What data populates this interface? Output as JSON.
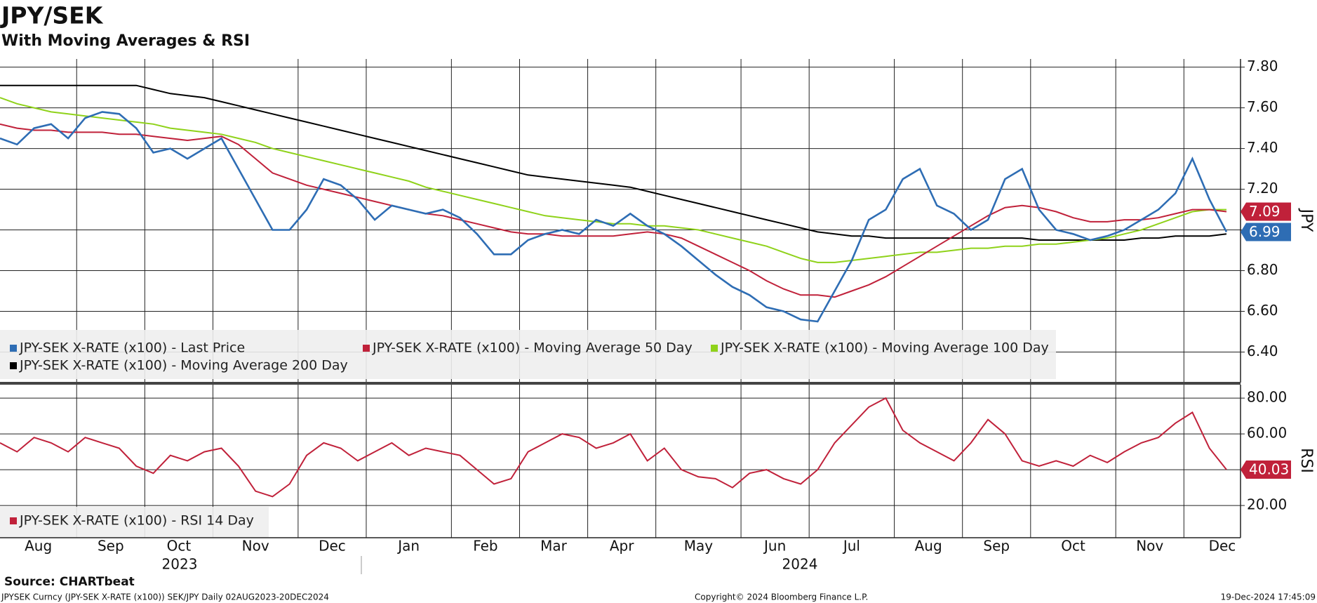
{
  "chart_data": [
    {
      "type": "line",
      "title": "JPY/SEK",
      "subtitle": "With Moving Averages & RSI",
      "axis_label": "JPY",
      "categories": [
        "Aug",
        null,
        null,
        null,
        null,
        "Sep",
        null,
        null,
        null,
        "Oct",
        null,
        null,
        null,
        "Nov",
        null,
        null,
        null,
        null,
        "Dec",
        null,
        null,
        null,
        "Jan",
        null,
        null,
        null,
        null,
        "Feb",
        null,
        null,
        null,
        "Mar",
        null,
        null,
        null,
        "Apr",
        null,
        null,
        null,
        "May",
        null,
        null,
        null,
        null,
        "Jun",
        null,
        null,
        null,
        "Jul",
        null,
        null,
        null,
        null,
        "Aug",
        null,
        null,
        null,
        "Sep",
        null,
        null,
        null,
        "Oct",
        null,
        null,
        null,
        null,
        "Nov",
        null,
        null,
        null,
        "Dec",
        null,
        null
      ],
      "years": [
        "2023",
        "2024"
      ],
      "ylim": [
        6.25,
        7.84
      ],
      "yticks": [
        {
          "value": 6.4,
          "label": "6.40"
        },
        {
          "value": 6.6,
          "label": "6.60"
        },
        {
          "value": 6.8,
          "label": "6.80"
        },
        {
          "value": 7.0,
          "label": "7.00"
        },
        {
          "value": 7.2,
          "label": "7.20"
        },
        {
          "value": 7.4,
          "label": "7.40"
        },
        {
          "value": 7.6,
          "label": "7.60"
        },
        {
          "value": 7.8,
          "label": "7.80"
        }
      ],
      "grid": true,
      "legend": "bottom-left",
      "series": [
        {
          "name": "JPY-SEK X-RATE (x100) - Last Price",
          "color": "#2e6db4",
          "end_label": true,
          "values": [
            7.45,
            7.42,
            7.5,
            7.52,
            7.45,
            7.55,
            7.58,
            7.57,
            7.5,
            7.38,
            7.4,
            7.35,
            7.4,
            7.45,
            7.3,
            7.15,
            7.0,
            7.0,
            7.1,
            7.25,
            7.22,
            7.15,
            7.05,
            7.12,
            7.1,
            7.08,
            7.1,
            7.06,
            6.98,
            6.88,
            6.88,
            6.95,
            6.98,
            7.0,
            6.98,
            7.05,
            7.02,
            7.08,
            7.02,
            6.98,
            6.92,
            6.85,
            6.78,
            6.72,
            6.68,
            6.62,
            6.6,
            6.56,
            6.55,
            6.7,
            6.85,
            7.05,
            7.1,
            7.25,
            7.3,
            7.12,
            7.08,
            7.0,
            7.05,
            7.25,
            7.3,
            7.1,
            7.0,
            6.98,
            6.95,
            6.97,
            7.0,
            7.05,
            7.1,
            7.18,
            7.35,
            7.15,
            6.99
          ]
        },
        {
          "name": "JPY-SEK X-RATE (x100) - Moving Average 50 Day",
          "color": "#c0213a",
          "end_label": true,
          "values": [
            7.52,
            7.5,
            7.49,
            7.49,
            7.48,
            7.48,
            7.48,
            7.47,
            7.47,
            7.46,
            7.45,
            7.44,
            7.45,
            7.46,
            7.42,
            7.35,
            7.28,
            7.25,
            7.22,
            7.2,
            7.18,
            7.16,
            7.14,
            7.12,
            7.1,
            7.08,
            7.07,
            7.05,
            7.03,
            7.01,
            6.99,
            6.98,
            6.98,
            6.97,
            6.97,
            6.97,
            6.97,
            6.98,
            6.99,
            6.98,
            6.96,
            6.92,
            6.88,
            6.84,
            6.8,
            6.75,
            6.71,
            6.68,
            6.68,
            6.67,
            6.7,
            6.73,
            6.77,
            6.82,
            6.87,
            6.92,
            6.97,
            7.02,
            7.07,
            7.11,
            7.12,
            7.11,
            7.09,
            7.06,
            7.04,
            7.04,
            7.05,
            7.05,
            7.06,
            7.08,
            7.1,
            7.1,
            7.09
          ]
        },
        {
          "name": "JPY-SEK X-RATE (x100) - Moving Average 100 Day",
          "color": "#8fd21a",
          "values": [
            7.65,
            7.62,
            7.6,
            7.58,
            7.57,
            7.56,
            7.55,
            7.54,
            7.53,
            7.52,
            7.5,
            7.49,
            7.48,
            7.47,
            7.45,
            7.43,
            7.4,
            7.38,
            7.36,
            7.34,
            7.32,
            7.3,
            7.28,
            7.26,
            7.24,
            7.21,
            7.19,
            7.17,
            7.15,
            7.13,
            7.11,
            7.09,
            7.07,
            7.06,
            7.05,
            7.04,
            7.03,
            7.03,
            7.02,
            7.02,
            7.01,
            7.0,
            6.98,
            6.96,
            6.94,
            6.92,
            6.89,
            6.86,
            6.84,
            6.84,
            6.85,
            6.86,
            6.87,
            6.88,
            6.89,
            6.89,
            6.9,
            6.91,
            6.91,
            6.92,
            6.92,
            6.93,
            6.93,
            6.94,
            6.95,
            6.96,
            6.98,
            7.0,
            7.03,
            7.06,
            7.09,
            7.1,
            7.1
          ]
        },
        {
          "name": "JPY-SEK X-RATE (x100) - Moving Average 200 Day",
          "color": "#000000",
          "values": [
            7.71,
            7.71,
            7.71,
            7.71,
            7.71,
            7.71,
            7.71,
            7.71,
            7.71,
            7.69,
            7.67,
            7.66,
            7.65,
            7.63,
            7.61,
            7.59,
            7.57,
            7.55,
            7.53,
            7.51,
            7.49,
            7.47,
            7.45,
            7.43,
            7.41,
            7.39,
            7.37,
            7.35,
            7.33,
            7.31,
            7.29,
            7.27,
            7.26,
            7.25,
            7.24,
            7.23,
            7.22,
            7.21,
            7.19,
            7.17,
            7.15,
            7.13,
            7.11,
            7.09,
            7.07,
            7.05,
            7.03,
            7.01,
            6.99,
            6.98,
            6.97,
            6.97,
            6.96,
            6.96,
            6.96,
            6.96,
            6.96,
            6.96,
            6.96,
            6.96,
            6.96,
            6.95,
            6.95,
            6.95,
            6.95,
            6.95,
            6.95,
            6.96,
            6.96,
            6.97,
            6.97,
            6.97,
            6.98
          ]
        }
      ]
    },
    {
      "type": "line",
      "axis_label": "RSI",
      "ylim": [
        2,
        87.5
      ],
      "yticks": [
        {
          "value": 20,
          "label": "20.00"
        },
        {
          "value": 40,
          "label": "40.00"
        },
        {
          "value": 60,
          "label": "60.00"
        },
        {
          "value": 80,
          "label": "80.00"
        }
      ],
      "grid": true,
      "legend": "bottom-left",
      "series": [
        {
          "name": "JPY-SEK X-RATE (x100) - RSI 14 Day",
          "color": "#c0213a",
          "end_label": true,
          "values": [
            55,
            50,
            58,
            55,
            50,
            58,
            55,
            52,
            42,
            38,
            48,
            45,
            50,
            52,
            42,
            28,
            25,
            32,
            48,
            55,
            52,
            45,
            50,
            55,
            48,
            52,
            50,
            48,
            40,
            32,
            35,
            50,
            55,
            60,
            58,
            52,
            55,
            60,
            45,
            52,
            40,
            36,
            35,
            30,
            38,
            40,
            35,
            32,
            40,
            55,
            65,
            75,
            80,
            62,
            55,
            50,
            45,
            55,
            68,
            60,
            45,
            42,
            45,
            42,
            48,
            44,
            50,
            55,
            58,
            66,
            72,
            52,
            40.03
          ]
        }
      ]
    }
  ],
  "footer": {
    "source": "Source: CHARTbeat",
    "description": "JPYSEK Curncy (JPY-SEK X-RATE (x100)) SEK/JPY  Daily 02AUG2023-20DEC2024",
    "copyright": "Copyright© 2024 Bloomberg Finance L.P.",
    "timestamp": "19-Dec-2024 17:45:09"
  }
}
